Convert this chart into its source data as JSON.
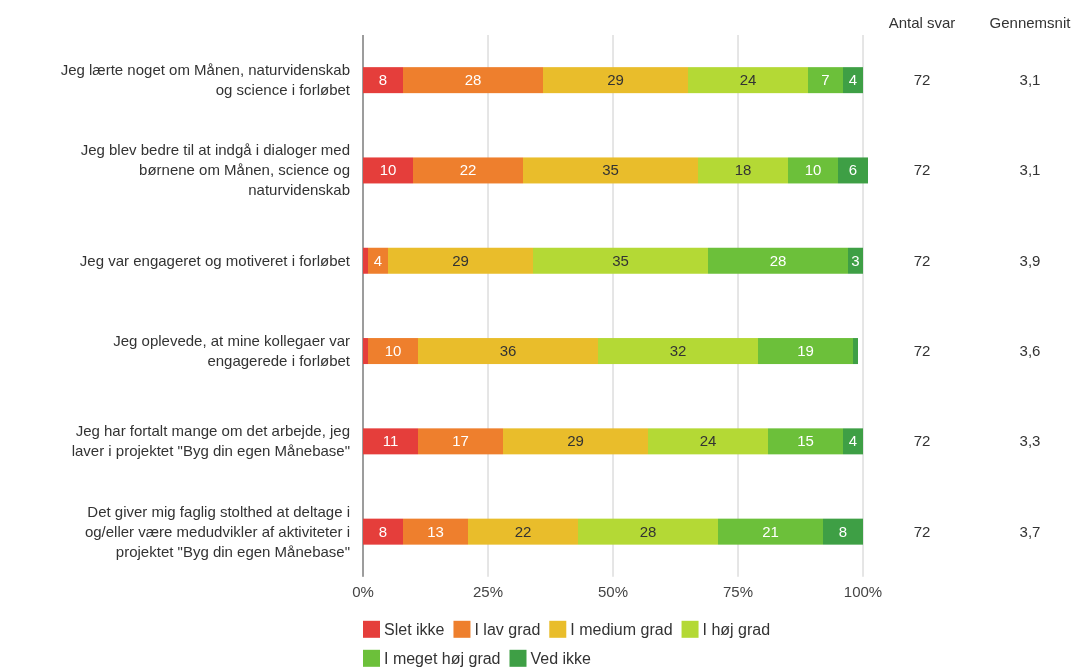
{
  "chart_data": {
    "type": "bar",
    "orientation": "horizontal",
    "stacked": true,
    "categories": [
      "Jeg lærte noget om Månen, naturvidenskab og science i forløbet",
      "Jeg blev bedre til at indgå i dialoger med børnene om Månen, science og naturvidenskab",
      "Jeg var engageret og motiveret i forløbet",
      "Jeg oplevede, at mine kollegaer var engagerede i forløbet",
      "Jeg har fortalt mange om det arbejde, jeg laver i projektet \"Byg din egen Månebase\"",
      "Det giver mig faglig stolthed at deltage i og/eller være medudvikler af aktiviteter i projektet \"Byg din egen Månebase\""
    ],
    "series": [
      {
        "name": "Slet ikke",
        "color": "#e53e3b",
        "values": [
          8,
          10,
          1,
          1,
          11,
          8
        ],
        "value_labels": [
          "8",
          "10",
          null,
          null,
          "11",
          "8"
        ]
      },
      {
        "name": "I lav grad",
        "color": "#ee7f2d",
        "values": [
          28,
          22,
          4,
          10,
          17,
          13
        ],
        "value_labels": [
          "28",
          "22",
          "4",
          "10",
          "17",
          "13"
        ]
      },
      {
        "name": "I medium grad",
        "color": "#e9bd2b",
        "values": [
          29,
          35,
          29,
          36,
          29,
          22
        ],
        "value_labels": [
          "29",
          "35",
          "29",
          "36",
          "29",
          "22"
        ]
      },
      {
        "name": "I høj grad",
        "color": "#b4d935",
        "values": [
          24,
          18,
          35,
          32,
          24,
          28
        ],
        "value_labels": [
          "24",
          "18",
          "35",
          "32",
          "24",
          "28"
        ]
      },
      {
        "name": "I meget høj grad",
        "color": "#6cc03a",
        "values": [
          7,
          10,
          28,
          19,
          15,
          21
        ],
        "value_labels": [
          "7",
          "10",
          "28",
          "19",
          "15",
          "21"
        ]
      },
      {
        "name": "Ved ikke",
        "color": "#3e9f45",
        "values": [
          4,
          6,
          3,
          1,
          4,
          8
        ],
        "value_labels": [
          "4",
          "6",
          "3",
          null,
          "4",
          "8"
        ]
      }
    ],
    "xlim": [
      0,
      101
    ],
    "xticks": [
      {
        "value": 0,
        "label": "0%"
      },
      {
        "value": 25,
        "label": "25%"
      },
      {
        "value": 50,
        "label": "50%"
      },
      {
        "value": 75,
        "label": "75%"
      },
      {
        "value": 100,
        "label": "100%"
      }
    ],
    "grid": "x",
    "legend": "bottom",
    "annotations": [
      "Antal svar",
      "Gennemsnit",
      "72",
      "3,1",
      "72",
      "3,1",
      "72",
      "3,9",
      "72",
      "3,6",
      "72",
      "3,3",
      "72",
      "3,7"
    ]
  }
}
